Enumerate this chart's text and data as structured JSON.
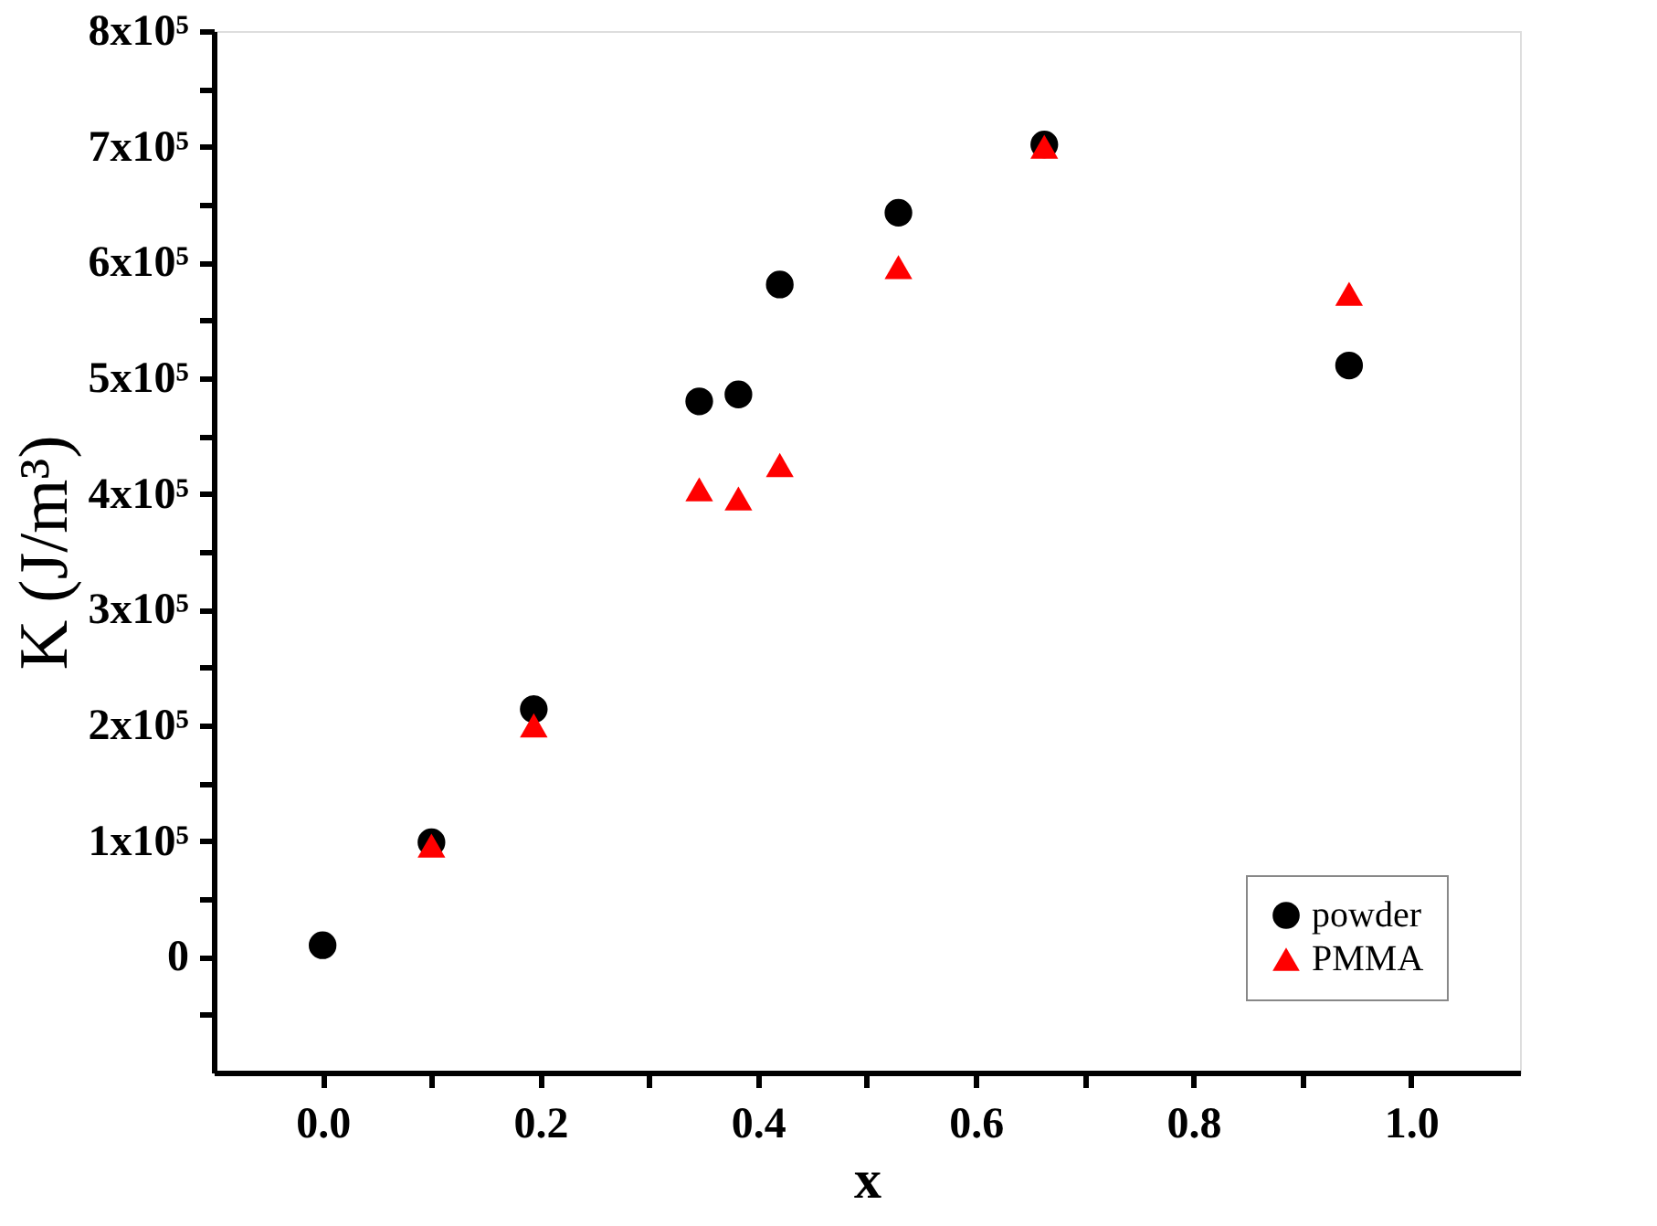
{
  "chart_data": {
    "type": "scatter",
    "xlabel": "x",
    "ylabel": "K (J/m³)",
    "xlim": [
      -0.1,
      1.1
    ],
    "ylim": [
      -100000,
      800000
    ],
    "xticks": [
      {
        "value": 0,
        "label": "0.0"
      },
      {
        "value": 0.1,
        "label": null
      },
      0.2,
      {
        "value": 0.3,
        "label": null
      },
      0.4,
      {
        "value": 0.5,
        "label": null
      },
      0.6,
      {
        "value": 0.7,
        "label": null
      },
      0.8,
      {
        "value": 0.9,
        "label": null
      },
      {
        "value": 1,
        "label": "1.0"
      }
    ],
    "yticks": [
      {
        "value": -50000,
        "label": null
      },
      0,
      {
        "value": 50000,
        "label": null
      },
      {
        "value": 100000,
        "label": "1x10⁵"
      },
      {
        "value": 150000,
        "label": null
      },
      {
        "value": 200000,
        "label": "2x10⁵"
      },
      {
        "value": 250000,
        "label": null
      },
      {
        "value": 300000,
        "label": "3x10⁵"
      },
      {
        "value": 350000,
        "label": null
      },
      {
        "value": 400000,
        "label": "4x10⁵"
      },
      {
        "value": 450000,
        "label": null
      },
      {
        "value": 500000,
        "label": "5x10⁵"
      },
      {
        "value": 550000,
        "label": null
      },
      {
        "value": 600000,
        "label": "6x10⁵"
      },
      {
        "value": 650000,
        "label": null
      },
      {
        "value": 700000,
        "label": "7x10⁵"
      },
      {
        "value": 750000,
        "label": null
      },
      {
        "value": 800000,
        "label": "8x10⁵"
      }
    ],
    "grid": false,
    "legend": "bottom right",
    "series": [
      {
        "name": "powder",
        "color": "#000000",
        "marker": "circle",
        "x": [
          0.0,
          0.1,
          0.194,
          0.346,
          0.382,
          0.42,
          0.529,
          0.663,
          0.943
        ],
        "values": [
          10000,
          99000,
          214000,
          480000,
          486000,
          581000,
          643000,
          702000,
          511000
        ]
      },
      {
        "name": "PMMA",
        "color": "#ff0000",
        "marker": "triangle",
        "x": [
          0.1,
          0.194,
          0.346,
          0.382,
          0.42,
          0.529,
          0.663,
          0.943
        ],
        "values": [
          96000,
          200000,
          404000,
          396000,
          425000,
          596000,
          700000,
          573000
        ]
      }
    ]
  }
}
